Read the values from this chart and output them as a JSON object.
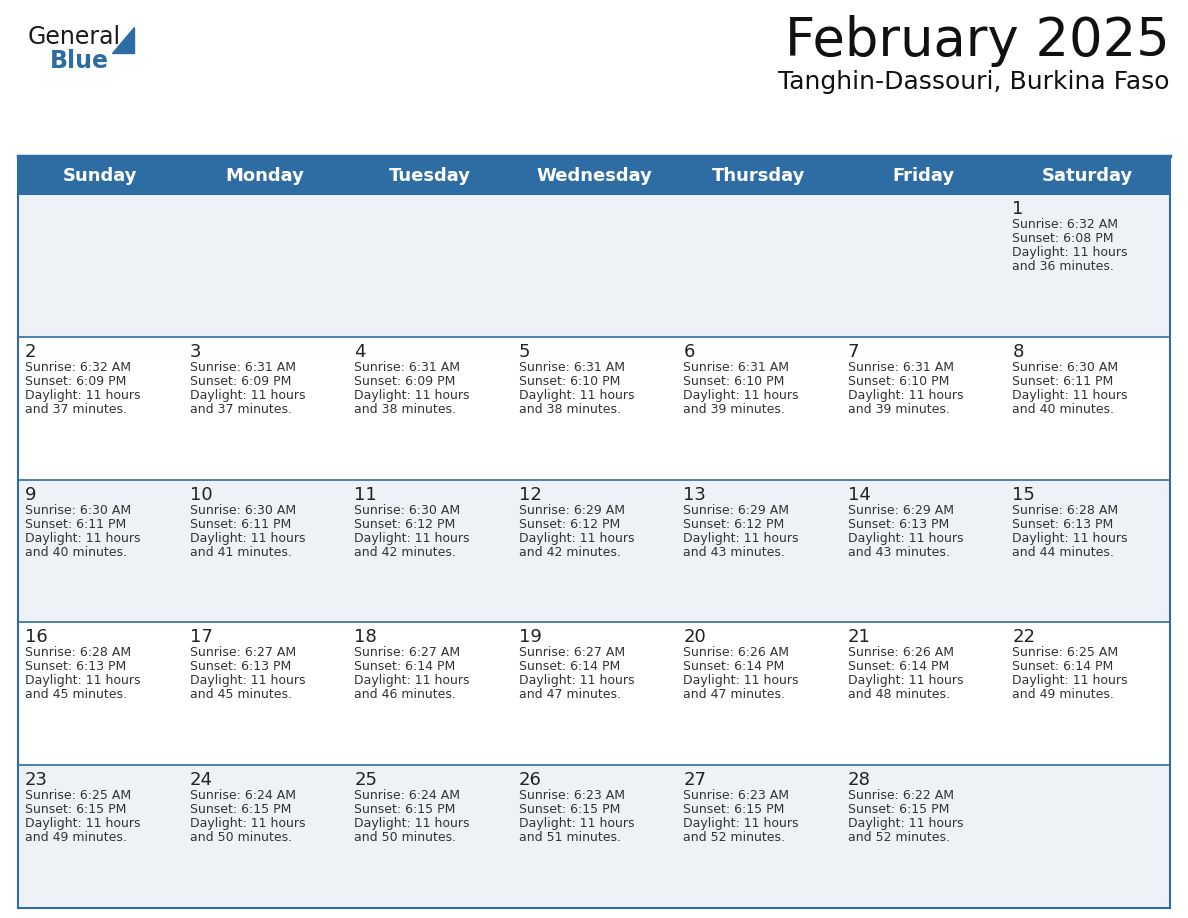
{
  "title": "February 2025",
  "subtitle": "Tanghin-Dassouri, Burkina Faso",
  "header_bg": "#2E6DA4",
  "header_text_color": "#ffffff",
  "cell_bg_odd": "#eef2f7",
  "cell_bg_even": "#ffffff",
  "border_color": "#2E6DA4",
  "text_color": "#333333",
  "day_num_color": "#222222",
  "day_headers": [
    "Sunday",
    "Monday",
    "Tuesday",
    "Wednesday",
    "Thursday",
    "Friday",
    "Saturday"
  ],
  "days": [
    {
      "day": 1,
      "col": 6,
      "row": 0,
      "sunrise": "6:32 AM",
      "sunset": "6:08 PM",
      "daylight": "11 hours",
      "daylight2": "and 36 minutes."
    },
    {
      "day": 2,
      "col": 0,
      "row": 1,
      "sunrise": "6:32 AM",
      "sunset": "6:09 PM",
      "daylight": "11 hours",
      "daylight2": "and 37 minutes."
    },
    {
      "day": 3,
      "col": 1,
      "row": 1,
      "sunrise": "6:31 AM",
      "sunset": "6:09 PM",
      "daylight": "11 hours",
      "daylight2": "and 37 minutes."
    },
    {
      "day": 4,
      "col": 2,
      "row": 1,
      "sunrise": "6:31 AM",
      "sunset": "6:09 PM",
      "daylight": "11 hours",
      "daylight2": "and 38 minutes."
    },
    {
      "day": 5,
      "col": 3,
      "row": 1,
      "sunrise": "6:31 AM",
      "sunset": "6:10 PM",
      "daylight": "11 hours",
      "daylight2": "and 38 minutes."
    },
    {
      "day": 6,
      "col": 4,
      "row": 1,
      "sunrise": "6:31 AM",
      "sunset": "6:10 PM",
      "daylight": "11 hours",
      "daylight2": "and 39 minutes."
    },
    {
      "day": 7,
      "col": 5,
      "row": 1,
      "sunrise": "6:31 AM",
      "sunset": "6:10 PM",
      "daylight": "11 hours",
      "daylight2": "and 39 minutes."
    },
    {
      "day": 8,
      "col": 6,
      "row": 1,
      "sunrise": "6:30 AM",
      "sunset": "6:11 PM",
      "daylight": "11 hours",
      "daylight2": "and 40 minutes."
    },
    {
      "day": 9,
      "col": 0,
      "row": 2,
      "sunrise": "6:30 AM",
      "sunset": "6:11 PM",
      "daylight": "11 hours",
      "daylight2": "and 40 minutes."
    },
    {
      "day": 10,
      "col": 1,
      "row": 2,
      "sunrise": "6:30 AM",
      "sunset": "6:11 PM",
      "daylight": "11 hours",
      "daylight2": "and 41 minutes."
    },
    {
      "day": 11,
      "col": 2,
      "row": 2,
      "sunrise": "6:30 AM",
      "sunset": "6:12 PM",
      "daylight": "11 hours",
      "daylight2": "and 42 minutes."
    },
    {
      "day": 12,
      "col": 3,
      "row": 2,
      "sunrise": "6:29 AM",
      "sunset": "6:12 PM",
      "daylight": "11 hours",
      "daylight2": "and 42 minutes."
    },
    {
      "day": 13,
      "col": 4,
      "row": 2,
      "sunrise": "6:29 AM",
      "sunset": "6:12 PM",
      "daylight": "11 hours",
      "daylight2": "and 43 minutes."
    },
    {
      "day": 14,
      "col": 5,
      "row": 2,
      "sunrise": "6:29 AM",
      "sunset": "6:13 PM",
      "daylight": "11 hours",
      "daylight2": "and 43 minutes."
    },
    {
      "day": 15,
      "col": 6,
      "row": 2,
      "sunrise": "6:28 AM",
      "sunset": "6:13 PM",
      "daylight": "11 hours",
      "daylight2": "and 44 minutes."
    },
    {
      "day": 16,
      "col": 0,
      "row": 3,
      "sunrise": "6:28 AM",
      "sunset": "6:13 PM",
      "daylight": "11 hours",
      "daylight2": "and 45 minutes."
    },
    {
      "day": 17,
      "col": 1,
      "row": 3,
      "sunrise": "6:27 AM",
      "sunset": "6:13 PM",
      "daylight": "11 hours",
      "daylight2": "and 45 minutes."
    },
    {
      "day": 18,
      "col": 2,
      "row": 3,
      "sunrise": "6:27 AM",
      "sunset": "6:14 PM",
      "daylight": "11 hours",
      "daylight2": "and 46 minutes."
    },
    {
      "day": 19,
      "col": 3,
      "row": 3,
      "sunrise": "6:27 AM",
      "sunset": "6:14 PM",
      "daylight": "11 hours",
      "daylight2": "and 47 minutes."
    },
    {
      "day": 20,
      "col": 4,
      "row": 3,
      "sunrise": "6:26 AM",
      "sunset": "6:14 PM",
      "daylight": "11 hours",
      "daylight2": "and 47 minutes."
    },
    {
      "day": 21,
      "col": 5,
      "row": 3,
      "sunrise": "6:26 AM",
      "sunset": "6:14 PM",
      "daylight": "11 hours",
      "daylight2": "and 48 minutes."
    },
    {
      "day": 22,
      "col": 6,
      "row": 3,
      "sunrise": "6:25 AM",
      "sunset": "6:14 PM",
      "daylight": "11 hours",
      "daylight2": "and 49 minutes."
    },
    {
      "day": 23,
      "col": 0,
      "row": 4,
      "sunrise": "6:25 AM",
      "sunset": "6:15 PM",
      "daylight": "11 hours",
      "daylight2": "and 49 minutes."
    },
    {
      "day": 24,
      "col": 1,
      "row": 4,
      "sunrise": "6:24 AM",
      "sunset": "6:15 PM",
      "daylight": "11 hours",
      "daylight2": "and 50 minutes."
    },
    {
      "day": 25,
      "col": 2,
      "row": 4,
      "sunrise": "6:24 AM",
      "sunset": "6:15 PM",
      "daylight": "11 hours",
      "daylight2": "and 50 minutes."
    },
    {
      "day": 26,
      "col": 3,
      "row": 4,
      "sunrise": "6:23 AM",
      "sunset": "6:15 PM",
      "daylight": "11 hours",
      "daylight2": "and 51 minutes."
    },
    {
      "day": 27,
      "col": 4,
      "row": 4,
      "sunrise": "6:23 AM",
      "sunset": "6:15 PM",
      "daylight": "11 hours",
      "daylight2": "and 52 minutes."
    },
    {
      "day": 28,
      "col": 5,
      "row": 4,
      "sunrise": "6:22 AM",
      "sunset": "6:15 PM",
      "daylight": "11 hours",
      "daylight2": "and 52 minutes."
    }
  ],
  "logo_text_general": "General",
  "logo_text_blue": "Blue",
  "logo_color_general": "#1a1a1a",
  "logo_color_blue": "#2E6DA4",
  "logo_triangle_color": "#2E6DA4",
  "title_fontsize": 38,
  "subtitle_fontsize": 18,
  "header_fontsize": 13,
  "day_num_fontsize": 13,
  "cell_text_fontsize": 9
}
